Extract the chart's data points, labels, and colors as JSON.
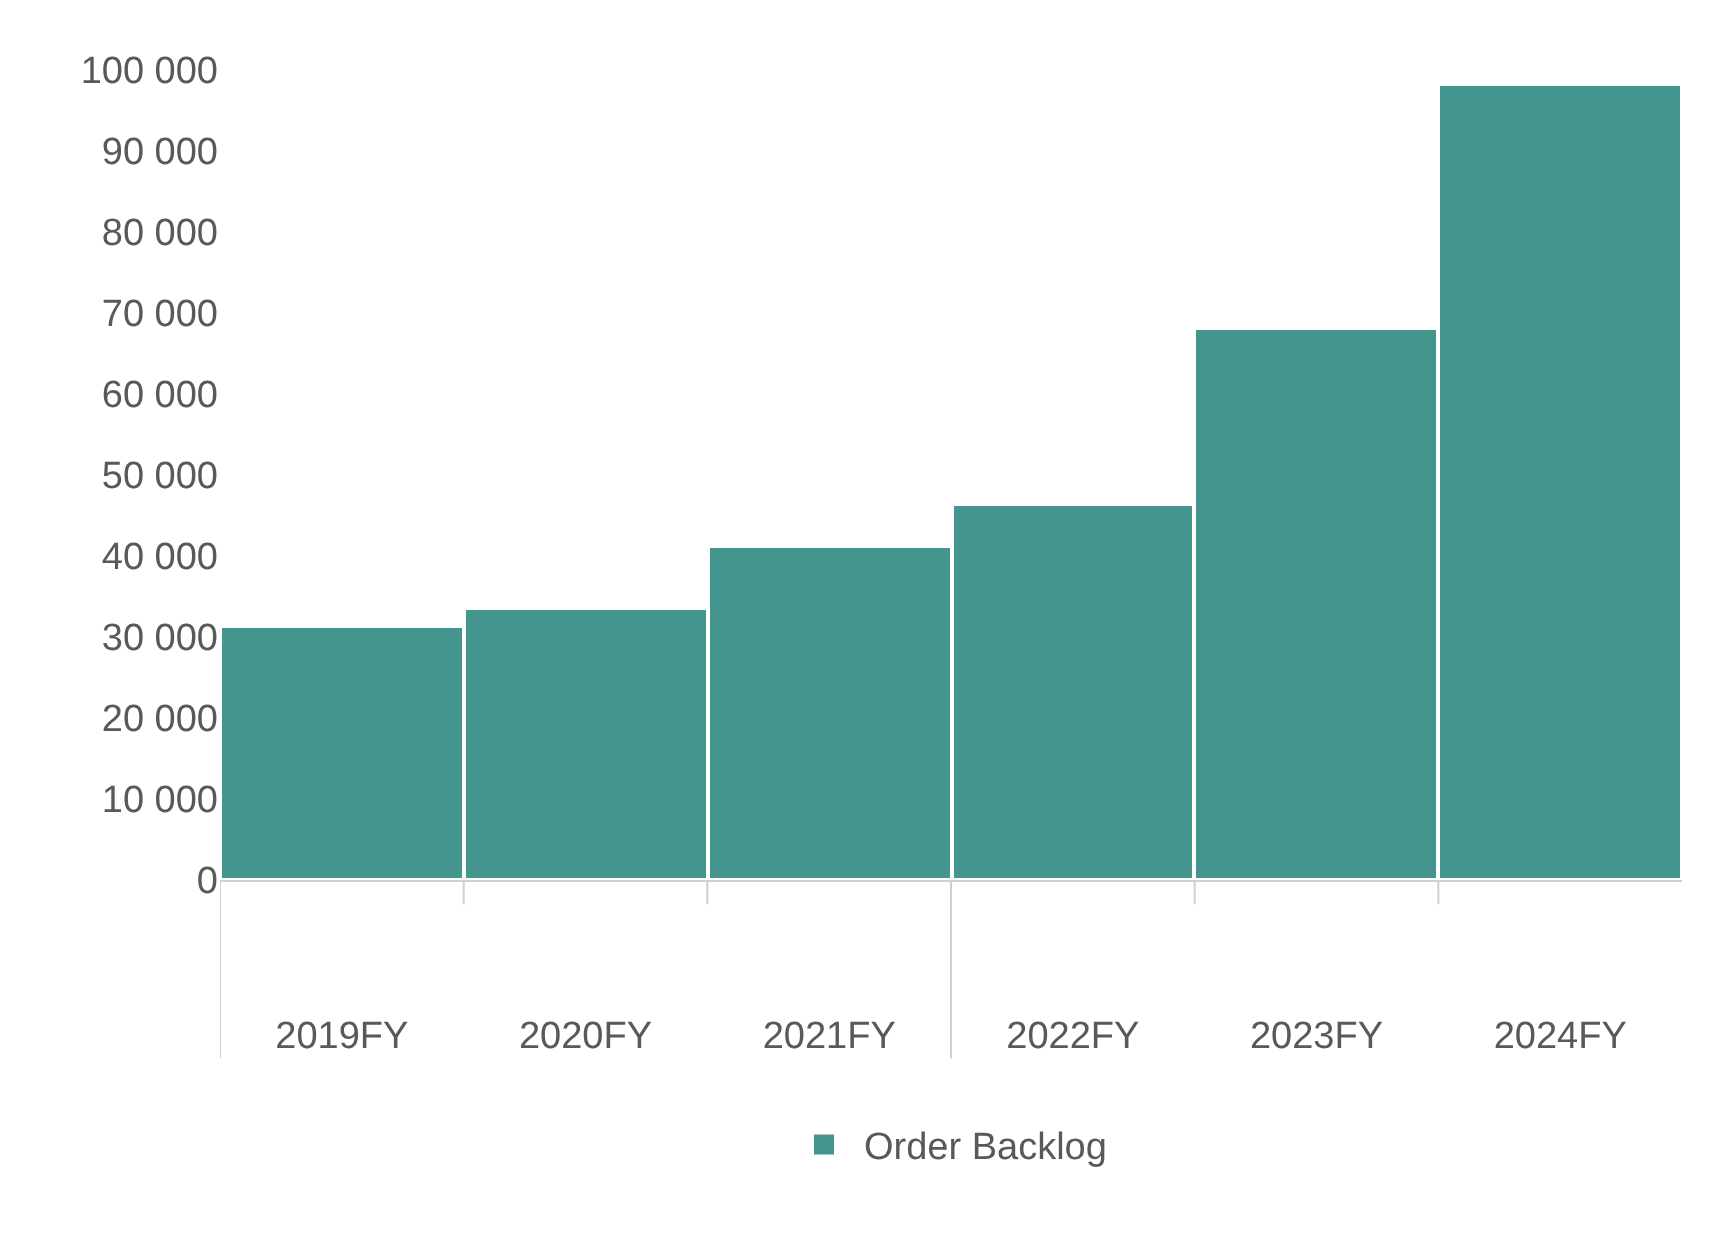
{
  "chart_data": {
    "type": "bar",
    "categories": [
      "2019FY",
      "2020FY",
      "2021FY",
      "2022FY",
      "2023FY",
      "2024FY"
    ],
    "series": [
      {
        "name": "Order Backlog",
        "color": "#45958f",
        "values": [
          31300,
          33600,
          41300,
          46500,
          68200,
          98300
        ]
      }
    ],
    "ylim": [
      0,
      100000
    ],
    "yticks": [
      0,
      {
        "value": 10000,
        "label": "10 000"
      },
      {
        "value": 20000,
        "label": "20 000"
      },
      {
        "value": 30000,
        "label": "30 000"
      },
      {
        "value": 40000,
        "label": "40 000"
      },
      {
        "value": 50000,
        "label": "50 000"
      },
      {
        "value": 60000,
        "label": "60 000"
      },
      {
        "value": 70000,
        "label": "70 000"
      },
      {
        "value": 80000,
        "label": "80 000"
      },
      {
        "value": 90000,
        "label": "90 000"
      },
      {
        "value": 100000,
        "label": "100 000"
      }
    ],
    "legend": "bottom"
  }
}
